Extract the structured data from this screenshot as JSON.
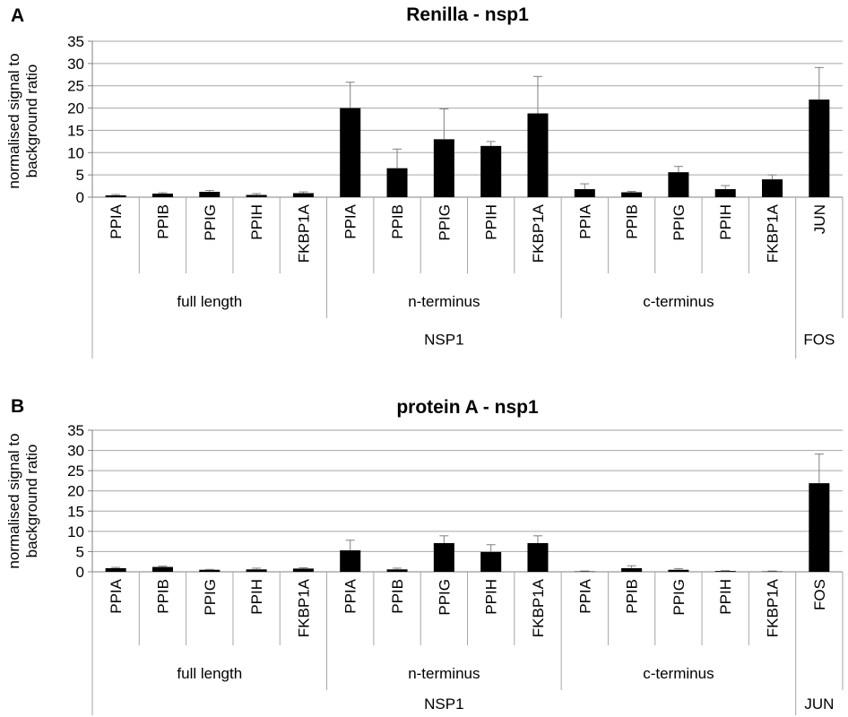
{
  "chart_data": [
    {
      "type": "bar",
      "panel_label": "A",
      "title": "Renilla - nsp1",
      "ylabel_lines": [
        "normalised signal to",
        "background ratio"
      ],
      "ylim": [
        0,
        35
      ],
      "yticks": [
        0,
        5,
        10,
        15,
        20,
        25,
        30,
        35
      ],
      "grid": true,
      "categories": [
        "PPIA",
        "PPIB",
        "PPIG",
        "PPIH",
        "FKBP1A",
        "PPIA",
        "PPIB",
        "PPIG",
        "PPIH",
        "FKBP1A",
        "PPIA",
        "PPIB",
        "PPIG",
        "PPIH",
        "FKBP1A",
        "JUN"
      ],
      "values": [
        0.4,
        0.8,
        1.2,
        0.5,
        0.9,
        20.0,
        6.5,
        13.0,
        11.5,
        18.8,
        1.8,
        1.1,
        5.6,
        1.8,
        4.0,
        21.9
      ],
      "errors": [
        0.2,
        0.2,
        0.3,
        0.3,
        0.3,
        5.8,
        4.3,
        6.8,
        1.0,
        8.3,
        1.2,
        0.2,
        1.3,
        0.8,
        1.0,
        7.2
      ],
      "groups": [
        {
          "label": "full length",
          "span": 5
        },
        {
          "label": "n-terminus",
          "span": 5
        },
        {
          "label": "c-terminus",
          "span": 5
        },
        {
          "label": "",
          "span": 1
        }
      ],
      "supergroups": [
        {
          "label": "NSP1",
          "span": 15
        },
        {
          "label": "FOS",
          "span": 1
        }
      ],
      "bar_color": "#000000",
      "grid_color": "#a6a6a6"
    },
    {
      "type": "bar",
      "panel_label": "B",
      "title": "protein A - nsp1",
      "ylabel_lines": [
        "normalised signal to",
        "background ratio"
      ],
      "ylim": [
        0,
        35
      ],
      "yticks": [
        0,
        5,
        10,
        15,
        20,
        25,
        30,
        35
      ],
      "grid": true,
      "categories": [
        "PPIA",
        "PPIB",
        "PPIG",
        "PPIH",
        "FKBP1A",
        "PPIA",
        "PPIB",
        "PPIG",
        "PPIH",
        "FKBP1A",
        "PPIA",
        "PPIB",
        "PPIG",
        "PPIH",
        "FKBP1A",
        "FOS"
      ],
      "values": [
        0.9,
        1.2,
        0.5,
        0.6,
        0.8,
        5.3,
        0.6,
        7.1,
        4.9,
        7.1,
        0.1,
        0.9,
        0.5,
        0.2,
        0.1,
        21.9
      ],
      "errors": [
        0.2,
        0.2,
        0.1,
        0.3,
        0.2,
        2.5,
        0.3,
        1.8,
        1.8,
        1.8,
        0.1,
        0.6,
        0.3,
        0.1,
        0.1,
        7.2
      ],
      "groups": [
        {
          "label": "full length",
          "span": 5
        },
        {
          "label": "n-terminus",
          "span": 5
        },
        {
          "label": "c-terminus",
          "span": 5
        },
        {
          "label": "",
          "span": 1
        }
      ],
      "supergroups": [
        {
          "label": "NSP1",
          "span": 15
        },
        {
          "label": "JUN",
          "span": 1
        }
      ],
      "bar_color": "#000000",
      "grid_color": "#a6a6a6"
    }
  ]
}
